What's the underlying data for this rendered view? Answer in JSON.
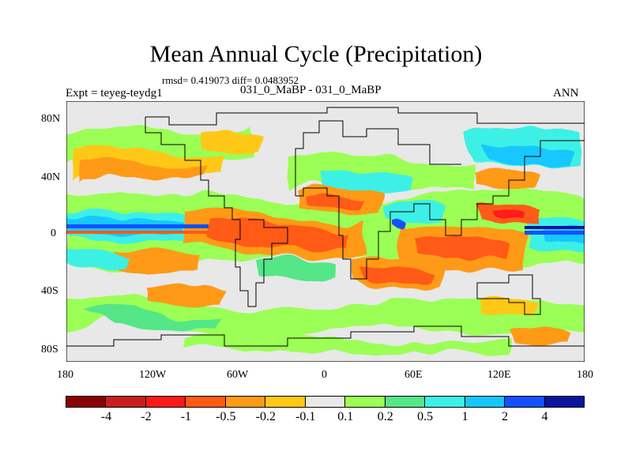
{
  "title": "Mean Annual Cycle (Precipitation)",
  "stats": "rmsd= 0.419073 diff= 0.0483952",
  "experiment": "Expt = teyeg-teydg1",
  "difference_name": "031_0_MaBP - 031_0_MaBP",
  "season": "ANN",
  "y_axis_labels": [
    "80N",
    "40N",
    "0",
    "40S",
    "80S"
  ],
  "x_axis_labels": [
    "180",
    "120W",
    "60W",
    "0",
    "60E",
    "120E",
    "180"
  ],
  "colorbar": {
    "colors": [
      "#8b0000",
      "#c81e1e",
      "#ff1a1a",
      "#ff5a14",
      "#ff9a14",
      "#ffc814",
      "#e8e8e8",
      "#9bff55",
      "#55e687",
      "#3cf0e6",
      "#14c8ff",
      "#1450ff",
      "#0a14a0"
    ],
    "labels": [
      "-4",
      "-2",
      "-1",
      "-0.5",
      "-0.2",
      "-0.1",
      "0.1",
      "0.2",
      "0.5",
      "1",
      "2",
      "4"
    ]
  },
  "colors": {
    "neutral": "#e8e8e8",
    "coast": "#000000"
  }
}
